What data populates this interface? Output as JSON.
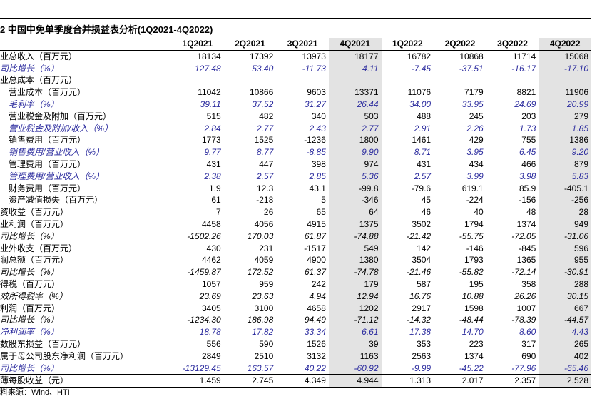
{
  "header": {
    "title": "2 中国中免单季度合并损益表分析(1Q2021-4Q2022)"
  },
  "table": {
    "columns": [
      "1Q2021",
      "2Q2021",
      "3Q2021",
      "4Q2021",
      "1Q2022",
      "2Q2022",
      "3Q2022",
      "4Q2022"
    ],
    "rows": [
      {
        "label": "业总收入（百万元）",
        "values": [
          "18134",
          "17392",
          "13973",
          "18177",
          "16782",
          "10868",
          "11714",
          "15068"
        ]
      },
      {
        "label": "司比增长（%）",
        "values": [
          "127.48",
          "53.40",
          "-11.73",
          "4.11",
          "-7.45",
          "-37.51",
          "-16.17",
          "-17.10"
        ]
      },
      {
        "label": "业总成本（百万元）",
        "values": []
      },
      {
        "label": "营业成本（百万元）",
        "values": [
          "11042",
          "10866",
          "9603",
          "13371",
          "11076",
          "7179",
          "8821",
          "11906"
        ]
      },
      {
        "label": "毛利率（%）",
        "values": [
          "39.11",
          "37.52",
          "31.27",
          "26.44",
          "34.00",
          "33.95",
          "24.69",
          "20.99"
        ]
      },
      {
        "label": "营业税金及附加（百万元）",
        "values": [
          "515",
          "482",
          "340",
          "503",
          "488",
          "245",
          "203",
          "279"
        ]
      },
      {
        "label": "营业税金及附加/收入（%）",
        "values": [
          "2.84",
          "2.77",
          "2.43",
          "2.77",
          "2.91",
          "2.26",
          "1.73",
          "1.85"
        ]
      },
      {
        "label": "销售费用（百万元）",
        "values": [
          "1773",
          "1525",
          "-1236",
          "1800",
          "1461",
          "429",
          "755",
          "1386"
        ]
      },
      {
        "label": "销售费用/营业收入（%）",
        "values": [
          "9.77",
          "8.77",
          "-8.85",
          "9.90",
          "8.71",
          "3.95",
          "6.45",
          "9.20"
        ]
      },
      {
        "label": "管理费用（百万元）",
        "values": [
          "431",
          "447",
          "398",
          "974",
          "431",
          "434",
          "466",
          "879"
        ]
      },
      {
        "label": "管理费用/营业收入（%）",
        "values": [
          "2.38",
          "2.57",
          "2.85",
          "5.36",
          "2.57",
          "3.99",
          "3.98",
          "5.83"
        ]
      },
      {
        "label": "财务费用（百万元）",
        "values": [
          "1.9",
          "12.3",
          "43.1",
          "-99.8",
          "-79.6",
          "619.1",
          "85.9",
          "-405.1"
        ]
      },
      {
        "label": "资产减值损失（百万元）",
        "values": [
          "61",
          "-218",
          "5",
          "-346",
          "45",
          "-224",
          "-156",
          "-256"
        ]
      },
      {
        "label": "资收益（百万元）",
        "values": [
          "7",
          "26",
          "65",
          "64",
          "46",
          "40",
          "48",
          "28"
        ]
      },
      {
        "label": "业利润（百万元）",
        "values": [
          "4458",
          "4056",
          "4915",
          "1375",
          "3502",
          "1794",
          "1374",
          "949"
        ]
      },
      {
        "label": "司比增长（%）",
        "values": [
          "-1502.26",
          "170.03",
          "61.87",
          "-74.88",
          "-21.42",
          "-55.75",
          "-72.05",
          "-31.06"
        ]
      },
      {
        "label": "业外收支（百万元）",
        "values": [
          "430",
          "231",
          "-1517",
          "549",
          "142",
          "-146",
          "-845",
          "596"
        ]
      },
      {
        "label": "润总额（百万元）",
        "values": [
          "4462",
          "4059",
          "4900",
          "1380",
          "3504",
          "1793",
          "1365",
          "955"
        ]
      },
      {
        "label": "司比增长（%）",
        "values": [
          "-1459.87",
          "172.52",
          "61.37",
          "-74.78",
          "-21.46",
          "-55.82",
          "-72.14",
          "-30.91"
        ]
      },
      {
        "label": "得税（百万元）",
        "values": [
          "1057",
          "959",
          "242",
          "179",
          "587",
          "195",
          "358",
          "288"
        ]
      },
      {
        "label": "效所得税率（%）",
        "values": [
          "23.69",
          "23.63",
          "4.94",
          "12.94",
          "16.76",
          "10.88",
          "26.26",
          "30.15"
        ]
      },
      {
        "label": "利润（百万元）",
        "values": [
          "3405",
          "3100",
          "4658",
          "1202",
          "2917",
          "1598",
          "1007",
          "667"
        ]
      },
      {
        "label": "司比增长（%）",
        "values": [
          "-1234.30",
          "186.98",
          "94.49",
          "-71.12",
          "-14.32",
          "-48.44",
          "-78.39",
          "-44.57"
        ]
      },
      {
        "label": "净利润率（%）",
        "values": [
          "18.78",
          "17.82",
          "33.34",
          "6.61",
          "17.38",
          "14.70",
          "8.60",
          "4.43"
        ]
      },
      {
        "label": "数股东损益（百万元）",
        "values": [
          "556",
          "590",
          "1526",
          "39",
          "353",
          "223",
          "317",
          "265"
        ]
      },
      {
        "label": "属于母公司股东净利润（百万元）",
        "values": [
          "2849",
          "2510",
          "3132",
          "1163",
          "2563",
          "1374",
          "690",
          "402"
        ]
      },
      {
        "label": "司比增长（%）",
        "values": [
          "-13129.45",
          "163.57",
          "40.22",
          "-60.92",
          "-9.99",
          "-45.22",
          "-77.96",
          "-65.46"
        ]
      },
      {
        "label": "薄每股收益（元）",
        "values": [
          "1.459",
          "2.745",
          "4.349",
          "4.944",
          "1.313",
          "2.017",
          "2.357",
          "2.528"
        ]
      }
    ]
  },
  "footer": {
    "source": "料来源：Wind、HTI"
  }
}
